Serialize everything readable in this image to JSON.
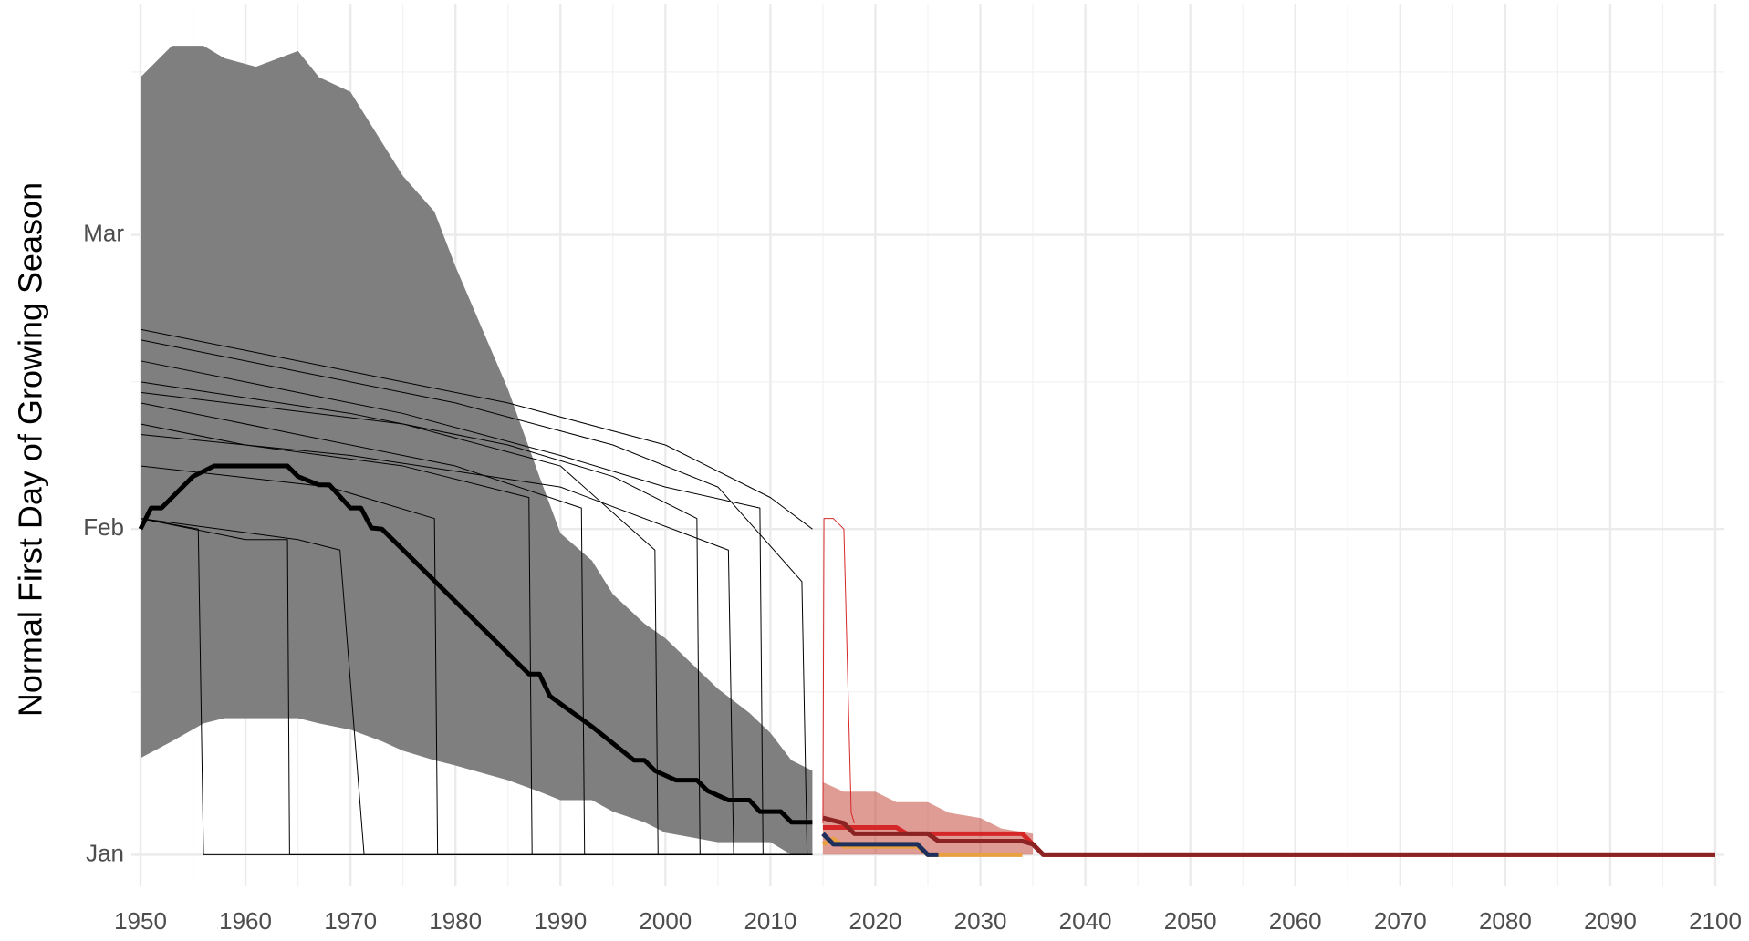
{
  "chart_data": {
    "type": "line",
    "y_label": "Normal First Day of Growing Season",
    "xlim": [
      1950,
      2100
    ],
    "ylim": [
      -2,
      82
    ],
    "xticks": [
      1950,
      1960,
      1970,
      1980,
      1990,
      2000,
      2010,
      2020,
      2030,
      2040,
      2050,
      2060,
      2070,
      2080,
      2090,
      2100
    ],
    "yticks": [
      {
        "value": 1,
        "label": "Jan"
      },
      {
        "value": 32,
        "label": "Feb"
      },
      {
        "value": 60,
        "label": "Mar"
      }
    ],
    "x_minor_grid": [
      1955,
      1965,
      1975,
      1985,
      1995,
      2005,
      2015,
      2025,
      2035,
      2045,
      2055,
      2065,
      2075,
      2085,
      2095
    ],
    "y_minor_grid": [
      16.5,
      46,
      75.5
    ],
    "grid": true,
    "bands": [
      {
        "color": "#7f7f7f",
        "opacity": 1,
        "x": [
          1950,
          1953,
          1956,
          1958,
          1961,
          1965,
          1967,
          1970,
          1973,
          1975,
          1978,
          1980,
          1985,
          1988,
          1990,
          1993,
          1995,
          1998,
          2000,
          2005,
          2008,
          2010,
          2012,
          2014
        ],
        "lower": [
          10.2,
          11.8,
          13.5,
          14,
          14,
          14,
          13.5,
          12.9,
          11.8,
          10.9,
          10,
          9.5,
          8.1,
          7,
          6.2,
          6.2,
          5.1,
          4.1,
          3.1,
          2.2,
          2.2,
          2.2,
          1,
          1
        ],
        "upper": [
          75,
          78,
          78,
          76.8,
          76,
          77.5,
          75,
          73.6,
          68.8,
          65.6,
          62.2,
          57,
          45.3,
          37,
          31.6,
          29,
          25.8,
          23,
          21.6,
          16.8,
          14.5,
          12.6,
          10,
          9
        ]
      },
      {
        "color": "#c0392b",
        "opacity": 0.5,
        "x": [
          2015,
          2017,
          2020,
          2022,
          2025,
          2027,
          2030,
          2032,
          2035
        ],
        "lower": [
          1,
          1,
          1,
          1,
          1,
          1,
          1,
          1,
          1
        ],
        "upper": [
          7.9,
          7,
          7,
          6,
          6,
          5,
          4.5,
          3.5,
          3
        ]
      }
    ],
    "series": [
      {
        "color": "#000000",
        "width": 1,
        "x": [
          1950,
          1960,
          1970,
          1985,
          2000,
          2010,
          2014
        ],
        "values": [
          51,
          49,
          47,
          44,
          40,
          35,
          32
        ]
      },
      {
        "color": "#000000",
        "width": 1,
        "x": [
          1950,
          1965,
          1980,
          1995,
          2005,
          2013,
          2013.5,
          2014
        ],
        "values": [
          50,
          47,
          44,
          40,
          36,
          27,
          1,
          1
        ]
      },
      {
        "color": "#000000",
        "width": 1,
        "x": [
          1950,
          1960,
          1975,
          1990,
          2000,
          2009,
          2009.3,
          2014
        ],
        "values": [
          48,
          46,
          43,
          39,
          36,
          34,
          1,
          1
        ]
      },
      {
        "color": "#000000",
        "width": 1,
        "x": [
          1950,
          1970,
          1985,
          1995,
          2003,
          2003.3,
          2014
        ],
        "values": [
          46,
          43,
          40,
          37,
          33,
          1,
          1
        ]
      },
      {
        "color": "#000000",
        "width": 1,
        "x": [
          1950,
          1965,
          1980,
          1992,
          1992.3,
          2014
        ],
        "values": [
          44,
          41,
          38,
          34,
          1,
          1
        ]
      },
      {
        "color": "#000000",
        "width": 1,
        "x": [
          1950,
          1960,
          1975,
          1987,
          1987.3,
          2014
        ],
        "values": [
          42,
          40,
          38,
          35,
          1,
          1
        ]
      },
      {
        "color": "#000000",
        "width": 1,
        "x": [
          1950,
          1955.5,
          1956,
          2014
        ],
        "values": [
          33,
          32,
          1,
          1
        ]
      },
      {
        "color": "#000000",
        "width": 1,
        "x": [
          1950,
          1960,
          1964,
          1964.2,
          2014
        ],
        "values": [
          33,
          31,
          31,
          1,
          1
        ]
      },
      {
        "color": "#000000",
        "width": 1,
        "x": [
          1950,
          1965,
          1969,
          1971.3,
          2014
        ],
        "values": [
          33,
          31,
          30,
          1,
          1
        ]
      },
      {
        "color": "#000000",
        "width": 1,
        "x": [
          1950,
          1968,
          1978,
          1978.3,
          2014
        ],
        "values": [
          38,
          36,
          33,
          1,
          1
        ]
      },
      {
        "color": "#000000",
        "width": 1,
        "x": [
          1950,
          1975,
          1990,
          1999,
          1999.3,
          2014
        ],
        "values": [
          45,
          42,
          38,
          30,
          1,
          1
        ]
      },
      {
        "color": "#000000",
        "width": 1,
        "x": [
          1950,
          1970,
          1990,
          2006,
          2006.5,
          2014
        ],
        "values": [
          41,
          39,
          36,
          30,
          1,
          1
        ]
      },
      {
        "color": "#000000",
        "width": 5,
        "x": [
          1950,
          1951,
          1952,
          1955,
          1957,
          1964,
          1965,
          1967,
          1968,
          1970,
          1971,
          1972,
          1973,
          1987,
          1988,
          1989,
          1993,
          1997,
          1998,
          1999,
          2001,
          2003,
          2004,
          2006,
          2008,
          2009,
          2011,
          2012,
          2014
        ],
        "values": [
          32,
          34,
          34,
          37,
          38,
          38,
          37,
          36.2,
          36.2,
          34,
          34,
          32.1,
          32,
          18.2,
          18.2,
          16.1,
          13.2,
          10,
          10,
          9,
          8.1,
          8.1,
          7.1,
          6.2,
          6.2,
          5.1,
          5.1,
          4.1,
          4.1
        ]
      },
      {
        "color": "#d62728",
        "width": 1,
        "x": [
          2015,
          2015.1,
          2016,
          2017,
          2017.7,
          2018
        ],
        "values": [
          4,
          33,
          33,
          32,
          5,
          4
        ]
      },
      {
        "color": "#e8a040",
        "width": 5,
        "x": [
          2015,
          2016,
          2017,
          2024,
          2025,
          2033,
          2034
        ],
        "values": [
          2,
          2.5,
          1.8,
          1.8,
          1,
          1,
          1
        ]
      },
      {
        "color": "#1f2f5c",
        "width": 5,
        "x": [
          2015,
          2016,
          2017,
          2024,
          2025,
          2026
        ],
        "values": [
          3,
          2,
          2,
          2,
          1,
          1
        ]
      },
      {
        "color": "#d62728",
        "width": 5,
        "x": [
          2015,
          2022,
          2023,
          2034,
          2035,
          2036,
          2100
        ],
        "values": [
          3.6,
          3.6,
          3,
          3,
          2,
          1,
          1
        ]
      },
      {
        "color": "#8b2323",
        "width": 5,
        "x": [
          2015,
          2017,
          2018,
          2025,
          2026,
          2034,
          2035,
          2036,
          2100
        ],
        "values": [
          4.5,
          4,
          3,
          3,
          2.3,
          2.3,
          2,
          1,
          1
        ]
      }
    ]
  }
}
